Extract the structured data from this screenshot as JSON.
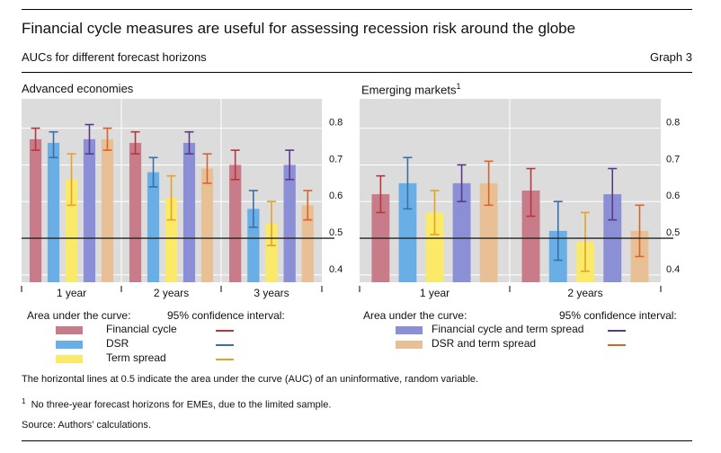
{
  "header": {
    "title": "Financial cycle measures are useful for assessing recession risk around the globe",
    "subtitle": "AUCs for different forecast horizons",
    "graph_label": "Graph 3"
  },
  "colors": {
    "financial_cycle": "#c87b88",
    "dsr": "#6aaee6",
    "term_spread": "#fbe96a",
    "fc_and_ts": "#8a8fd6",
    "dsr_and_ts": "#e9c095",
    "ci_financial_cycle": "#b8373f",
    "ci_dsr": "#3a6fa8",
    "ci_term_spread": "#e8a223",
    "ci_fc_and_ts": "#5a3a88",
    "ci_dsr_and_ts": "#d5652a",
    "plot_background": "#dcdcdc",
    "reference_line": "#222222"
  },
  "chart_data": [
    {
      "type": "bar",
      "title": "Advanced economies",
      "categories": [
        "1 year",
        "2 years",
        "3 years"
      ],
      "ylim": [
        0.38,
        0.88
      ],
      "yticks": [
        0.4,
        0.5,
        0.6,
        0.7,
        0.8
      ],
      "y_axis_side": "right",
      "grid": true,
      "reference_line": 0.5,
      "series": [
        {
          "name": "Financial cycle",
          "color_key": "financial_cycle",
          "ci_color_key": "ci_financial_cycle",
          "values": [
            0.77,
            0.76,
            0.7
          ],
          "ci_low": [
            0.74,
            0.73,
            0.66
          ],
          "ci_high": [
            0.8,
            0.79,
            0.74
          ]
        },
        {
          "name": "DSR",
          "color_key": "dsr",
          "ci_color_key": "ci_dsr",
          "values": [
            0.76,
            0.68,
            0.58
          ],
          "ci_low": [
            0.72,
            0.64,
            0.53
          ],
          "ci_high": [
            0.79,
            0.72,
            0.63
          ]
        },
        {
          "name": "Term spread",
          "color_key": "term_spread",
          "ci_color_key": "ci_term_spread",
          "values": [
            0.66,
            0.61,
            0.54
          ],
          "ci_low": [
            0.59,
            0.55,
            0.48
          ],
          "ci_high": [
            0.73,
            0.67,
            0.6
          ]
        },
        {
          "name": "Financial cycle and term spread",
          "color_key": "fc_and_ts",
          "ci_color_key": "ci_fc_and_ts",
          "values": [
            0.77,
            0.76,
            0.7
          ],
          "ci_low": [
            0.73,
            0.73,
            0.66
          ],
          "ci_high": [
            0.81,
            0.79,
            0.74
          ]
        },
        {
          "name": "DSR and term spread",
          "color_key": "dsr_and_ts",
          "ci_color_key": "ci_dsr_and_ts",
          "values": [
            0.77,
            0.69,
            0.59
          ],
          "ci_low": [
            0.74,
            0.65,
            0.55
          ],
          "ci_high": [
            0.8,
            0.73,
            0.63
          ]
        }
      ]
    },
    {
      "type": "bar",
      "title": "Emerging markets",
      "title_footnote": "1",
      "categories": [
        "1 year",
        "2 years"
      ],
      "ylim": [
        0.38,
        0.88
      ],
      "yticks": [
        0.4,
        0.5,
        0.6,
        0.7,
        0.8
      ],
      "y_axis_side": "right",
      "grid": true,
      "reference_line": 0.5,
      "series": [
        {
          "name": "Financial cycle",
          "color_key": "financial_cycle",
          "ci_color_key": "ci_financial_cycle",
          "values": [
            0.62,
            0.63
          ],
          "ci_low": [
            0.57,
            0.56
          ],
          "ci_high": [
            0.67,
            0.69
          ]
        },
        {
          "name": "DSR",
          "color_key": "dsr",
          "ci_color_key": "ci_dsr",
          "values": [
            0.65,
            0.52
          ],
          "ci_low": [
            0.58,
            0.44
          ],
          "ci_high": [
            0.72,
            0.6
          ]
        },
        {
          "name": "Term spread",
          "color_key": "term_spread",
          "ci_color_key": "ci_term_spread",
          "values": [
            0.57,
            0.49
          ],
          "ci_low": [
            0.51,
            0.41
          ],
          "ci_high": [
            0.63,
            0.57
          ]
        },
        {
          "name": "Financial cycle and term spread",
          "color_key": "fc_and_ts",
          "ci_color_key": "ci_fc_and_ts",
          "values": [
            0.65,
            0.62
          ],
          "ci_low": [
            0.6,
            0.55
          ],
          "ci_high": [
            0.7,
            0.69
          ]
        },
        {
          "name": "DSR and term spread",
          "color_key": "dsr_and_ts",
          "ci_color_key": "ci_dsr_and_ts",
          "values": [
            0.65,
            0.52
          ],
          "ci_low": [
            0.59,
            0.45
          ],
          "ci_high": [
            0.71,
            0.59
          ]
        }
      ]
    }
  ],
  "legend": {
    "area_heading": "Area under the curve:",
    "ci_heading": "95% confidence interval:",
    "left_items": [
      "Financial cycle",
      "DSR",
      "Term spread"
    ],
    "right_items": [
      "Financial cycle and term spread",
      "DSR and term spread"
    ]
  },
  "notes": {
    "reference_line_note": "The horizontal lines at 0.5 indicate the area under the curve (AUC) of an uninformative, random variable.",
    "footnote_marker": "1",
    "footnote_text": "No three-year forecast horizons for EMEs, due to the limited sample.",
    "source": "Source: Authors’ calculations."
  }
}
